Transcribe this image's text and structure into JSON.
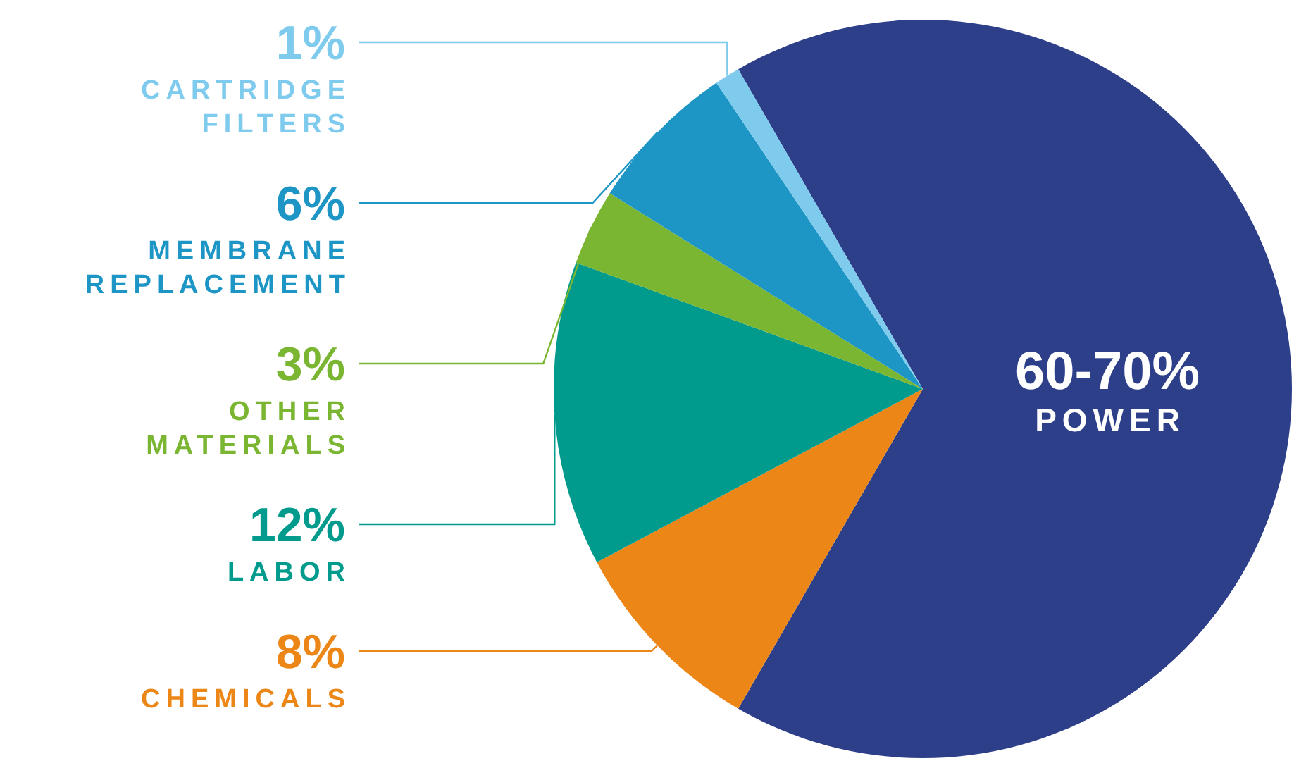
{
  "chart_data": {
    "type": "pie",
    "categories": [
      "POWER",
      "CHEMICALS",
      "LABOR",
      "OTHER MATERIALS",
      "MEMBRANE REPLACEMENT",
      "CARTRIDGE FILTERS"
    ],
    "values": [
      60,
      8,
      12,
      3,
      6,
      1
    ],
    "value_labels": [
      "60-70%",
      "8%",
      "12%",
      "3%",
      "6%",
      "1%"
    ],
    "colors": [
      "#2e3f8a",
      "#ec8617",
      "#009b8c",
      "#7ab631",
      "#1e96c5",
      "#7fcbee"
    ]
  }
}
